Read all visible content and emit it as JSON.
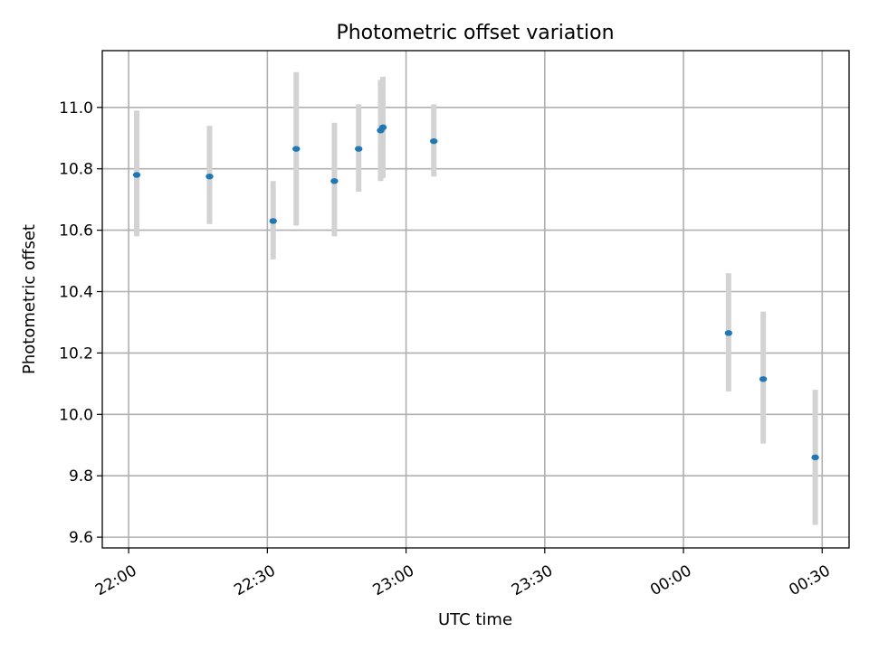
{
  "chart_data": {
    "type": "scatter",
    "title": "Photometric offset variation",
    "xlabel": "UTC time",
    "ylabel": "Photometric offset",
    "x_ticks": [
      "22:00",
      "22:30",
      "23:00",
      "23:30",
      "00:00",
      "00:30"
    ],
    "x_tick_hours": [
      22.0,
      22.5,
      23.0,
      23.5,
      24.0,
      24.5
    ],
    "xlim_hours": [
      21.905,
      24.597
    ],
    "y_ticks": [
      "9.6",
      "9.8",
      "10.0",
      "10.2",
      "10.4",
      "10.6",
      "10.8",
      "11.0"
    ],
    "ylim": [
      9.565,
      11.185
    ],
    "grid": true,
    "colors": {
      "point": "#1f77b4",
      "errorbar": "#d3d3d3"
    },
    "points": [
      {
        "time": "22:01:45",
        "y": 10.78,
        "y_low": 10.58,
        "y_high": 10.99
      },
      {
        "time": "22:17:30",
        "y": 10.775,
        "y_low": 10.62,
        "y_high": 10.94
      },
      {
        "time": "22:31:15",
        "y": 10.63,
        "y_low": 10.505,
        "y_high": 10.76
      },
      {
        "time": "22:36:15",
        "y": 10.865,
        "y_low": 10.615,
        "y_high": 11.115
      },
      {
        "time": "22:44:30",
        "y": 10.76,
        "y_low": 10.58,
        "y_high": 10.95
      },
      {
        "time": "22:49:45",
        "y": 10.865,
        "y_low": 10.725,
        "y_high": 11.01
      },
      {
        "time": "22:54:30",
        "y": 10.925,
        "y_low": 10.76,
        "y_high": 11.09
      },
      {
        "time": "22:55:00",
        "y": 10.935,
        "y_low": 10.77,
        "y_high": 11.1
      },
      {
        "time": "23:06:00",
        "y": 10.89,
        "y_low": 10.775,
        "y_high": 11.01
      },
      {
        "time": "00:09:45",
        "y": 10.265,
        "y_low": 10.075,
        "y_high": 10.46
      },
      {
        "time": "00:17:15",
        "y": 10.115,
        "y_low": 9.905,
        "y_high": 10.335
      },
      {
        "time": "00:28:30",
        "y": 9.86,
        "y_low": 9.64,
        "y_high": 10.08
      }
    ]
  }
}
